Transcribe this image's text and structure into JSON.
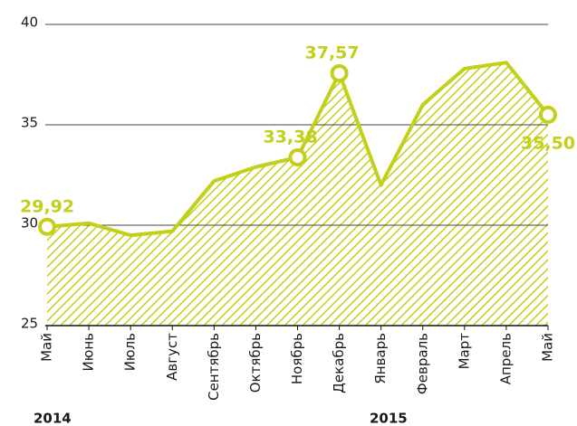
{
  "chart_data": {
    "type": "line",
    "categories": [
      "Май",
      "Июнь",
      "Июль",
      "Август",
      "Сентябрь",
      "Октябрь",
      "Ноябрь",
      "Декабрь",
      "Январь",
      "Февраль",
      "Март",
      "Апрель",
      "Май"
    ],
    "values": [
      29.92,
      30.1,
      29.5,
      29.7,
      32.2,
      32.9,
      33.38,
      37.57,
      32.0,
      36.0,
      37.8,
      38.1,
      35.5
    ],
    "value_labels": [
      "29,92",
      null,
      null,
      null,
      null,
      null,
      "33,38",
      "37,57",
      null,
      null,
      null,
      null,
      "35,50"
    ],
    "color": "#c3cf1a",
    "ylim": [
      25,
      40
    ],
    "yticks": [
      25,
      30,
      35,
      40
    ],
    "grid": true,
    "annotations": [
      "2014",
      "2015"
    ]
  }
}
